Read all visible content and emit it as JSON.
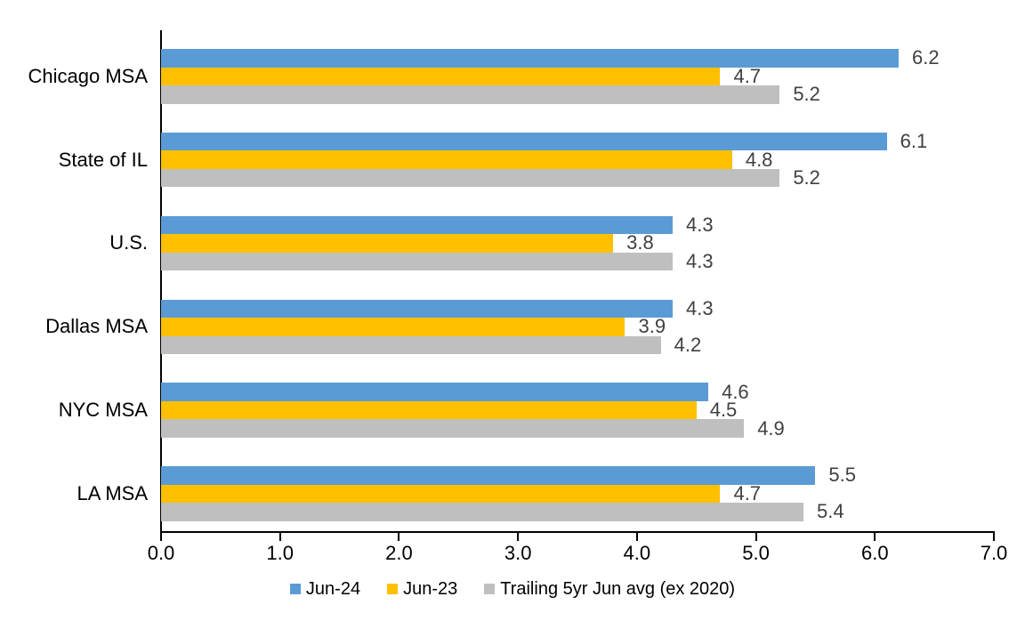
{
  "chart_data": {
    "type": "bar",
    "orientation": "horizontal",
    "categories": [
      "Chicago MSA",
      "State of IL",
      "U.S.",
      "Dallas MSA",
      "NYC MSA",
      "LA MSA"
    ],
    "series": [
      {
        "name": "Jun-24",
        "color": "#5B9BD5",
        "values": [
          6.2,
          6.1,
          4.3,
          4.3,
          4.6,
          5.5
        ]
      },
      {
        "name": "Jun-23",
        "color": "#FFC000",
        "values": [
          4.7,
          4.8,
          3.8,
          3.9,
          4.5,
          4.7
        ]
      },
      {
        "name": "Trailing 5yr Jun avg (ex 2020)",
        "color": "#BFBFBF",
        "values": [
          5.2,
          5.2,
          4.3,
          4.2,
          4.9,
          5.4
        ]
      }
    ],
    "data_labels": {
      "shown": true,
      "color": "#404040",
      "values": [
        [
          "6.2",
          "4.7",
          "5.2"
        ],
        [
          "6.1",
          "4.8",
          "5.2"
        ],
        [
          "4.3",
          "3.8",
          "4.3"
        ],
        [
          "4.3",
          "3.9",
          "4.2"
        ],
        [
          "4.6",
          "4.5",
          "4.9"
        ],
        [
          "5.5",
          "4.7",
          "5.4"
        ]
      ]
    },
    "x_axis": {
      "min": 0,
      "max": 7,
      "tick_interval": 1,
      "tick_labels": [
        "0.0",
        "1.0",
        "2.0",
        "3.0",
        "4.0",
        "5.0",
        "6.0",
        "7.0"
      ]
    },
    "legend": {
      "position": "bottom",
      "entries": [
        "Jun-24",
        "Jun-23",
        "Trailing 5yr Jun avg (ex 2020)"
      ]
    },
    "grid": "off",
    "axis_color": "#000000",
    "background": "#ffffff"
  }
}
